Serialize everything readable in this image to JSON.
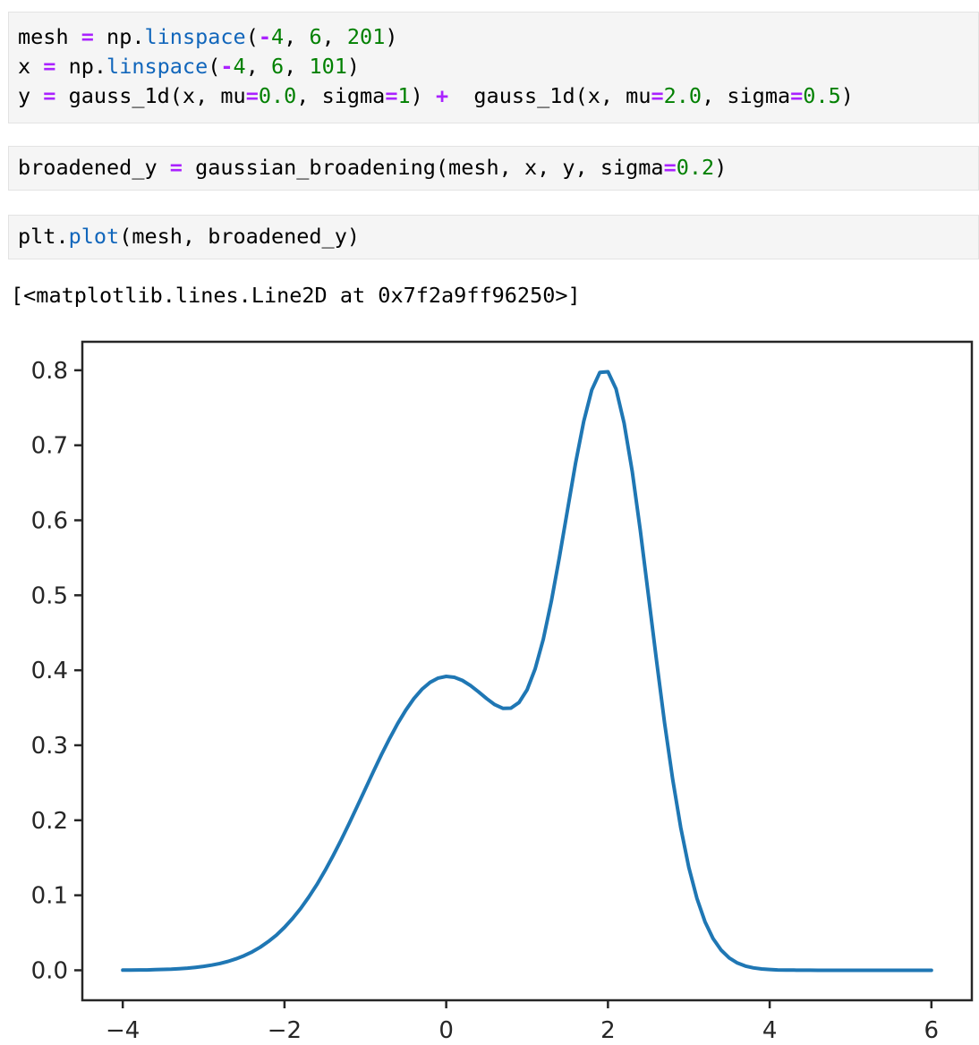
{
  "notebook": {
    "cells": [
      {
        "name": "code-cell-1",
        "lines": [
          [
            {
              "t": "mesh ",
              "c": "p"
            },
            {
              "t": "=",
              "c": "o"
            },
            {
              "t": " np.",
              "c": "p"
            },
            {
              "t": "linspace",
              "c": "f"
            },
            {
              "t": "(",
              "c": "p"
            },
            {
              "t": "-",
              "c": "o"
            },
            {
              "t": "4",
              "c": "n"
            },
            {
              "t": ", ",
              "c": "p"
            },
            {
              "t": "6",
              "c": "n"
            },
            {
              "t": ", ",
              "c": "p"
            },
            {
              "t": "201",
              "c": "n"
            },
            {
              "t": ")",
              "c": "p"
            }
          ],
          [
            {
              "t": "x ",
              "c": "p"
            },
            {
              "t": "=",
              "c": "o"
            },
            {
              "t": " np.",
              "c": "p"
            },
            {
              "t": "linspace",
              "c": "f"
            },
            {
              "t": "(",
              "c": "p"
            },
            {
              "t": "-",
              "c": "o"
            },
            {
              "t": "4",
              "c": "n"
            },
            {
              "t": ", ",
              "c": "p"
            },
            {
              "t": "6",
              "c": "n"
            },
            {
              "t": ", ",
              "c": "p"
            },
            {
              "t": "101",
              "c": "n"
            },
            {
              "t": ")",
              "c": "p"
            }
          ],
          [
            {
              "t": "y ",
              "c": "p"
            },
            {
              "t": "=",
              "c": "o"
            },
            {
              "t": " gauss_1d(x, mu",
              "c": "p"
            },
            {
              "t": "=",
              "c": "o"
            },
            {
              "t": "0.0",
              "c": "n"
            },
            {
              "t": ", sigma",
              "c": "p"
            },
            {
              "t": "=",
              "c": "o"
            },
            {
              "t": "1",
              "c": "n"
            },
            {
              "t": ") ",
              "c": "p"
            },
            {
              "t": "+",
              "c": "o"
            },
            {
              "t": "  gauss_1d(x, mu",
              "c": "p"
            },
            {
              "t": "=",
              "c": "o"
            },
            {
              "t": "2.0",
              "c": "n"
            },
            {
              "t": ", sigma",
              "c": "p"
            },
            {
              "t": "=",
              "c": "o"
            },
            {
              "t": "0.5",
              "c": "n"
            },
            {
              "t": ")",
              "c": "p"
            }
          ]
        ]
      },
      {
        "name": "code-cell-2",
        "lines": [
          [
            {
              "t": "broadened_y ",
              "c": "p"
            },
            {
              "t": "=",
              "c": "o"
            },
            {
              "t": " gaussian_broadening(mesh, x, y, sigma",
              "c": "p"
            },
            {
              "t": "=",
              "c": "o"
            },
            {
              "t": "0.2",
              "c": "n"
            },
            {
              "t": ")",
              "c": "p"
            }
          ]
        ]
      },
      {
        "name": "code-cell-3",
        "lines": [
          [
            {
              "t": "plt.",
              "c": "p"
            },
            {
              "t": "plot",
              "c": "f"
            },
            {
              "t": "(mesh, broadened_y)",
              "c": "p"
            }
          ]
        ]
      }
    ],
    "output_text": "[<matplotlib.lines.Line2D at 0x7f2a9ff96250>]"
  },
  "colors": {
    "code_plain": "#000000",
    "code_operator": "#aa22ff",
    "code_number": "#008000",
    "code_property": "#1166bb",
    "cell_background": "#f5f5f5",
    "cell_border": "#e3e3e3",
    "axis": "#262626",
    "plot_line": "#1f77b4"
  },
  "chart_data": {
    "type": "line",
    "title": "",
    "xlabel": "",
    "ylabel": "",
    "grid": false,
    "legend": null,
    "xlim": [
      -4.5,
      6.5
    ],
    "ylim": [
      -0.04,
      0.838
    ],
    "xticks": [
      -4,
      -2,
      0,
      2,
      4,
      6
    ],
    "xtick_labels": [
      "−4",
      "−2",
      "0",
      "2",
      "4",
      "6"
    ],
    "yticks": [
      0.0,
      0.1,
      0.2,
      0.3,
      0.4,
      0.5,
      0.6,
      0.7,
      0.8
    ],
    "ytick_labels": [
      "0.0",
      "0.1",
      "0.2",
      "0.3",
      "0.4",
      "0.5",
      "0.6",
      "0.7",
      "0.8"
    ],
    "line_color": "#1f77b4",
    "line_width": 4,
    "series_name": "broadened_y vs mesh",
    "x": [
      -4,
      -3.9,
      -3.8,
      -3.7,
      -3.6,
      -3.5,
      -3.4,
      -3.3,
      -3.2,
      -3.1,
      -3,
      -2.9,
      -2.8,
      -2.7,
      -2.6,
      -2.5,
      -2.4,
      -2.3,
      -2.2,
      -2.1,
      -2,
      -1.9,
      -1.8,
      -1.7,
      -1.6,
      -1.5,
      -1.4,
      -1.3,
      -1.2,
      -1.1,
      -1,
      -0.9,
      -0.8,
      -0.7,
      -0.6,
      -0.5,
      -0.4,
      -0.3,
      -0.2,
      -0.1,
      0,
      0.1,
      0.2,
      0.3,
      0.4,
      0.5,
      0.6,
      0.7,
      0.8,
      0.9,
      1,
      1.1,
      1.2,
      1.3,
      1.4,
      1.5,
      1.6,
      1.7,
      1.8,
      1.9,
      2,
      2.1,
      2.2,
      2.3,
      2.4,
      2.5,
      2.6,
      2.7,
      2.8,
      2.9,
      3,
      3.1,
      3.2,
      3.3,
      3.4,
      3.5,
      3.6,
      3.7,
      3.8,
      3.9,
      4,
      4.1,
      4.2,
      4.3,
      4.4,
      4.5,
      4.6,
      4.7,
      4.8,
      4.9,
      5,
      5.1,
      5.2,
      5.3,
      5.4,
      5.5,
      5.6,
      5.7,
      5.8,
      5.9,
      6
    ],
    "y": [
      0.0002,
      0.0003,
      0.0004,
      0.0005,
      0.0008,
      0.0011,
      0.0015,
      0.0021,
      0.0028,
      0.0039,
      0.0052,
      0.0069,
      0.009,
      0.0118,
      0.0152,
      0.0194,
      0.0245,
      0.0308,
      0.0382,
      0.0469,
      0.0572,
      0.069,
      0.0824,
      0.0975,
      0.1142,
      0.1326,
      0.1524,
      0.1736,
      0.1957,
      0.2186,
      0.2419,
      0.265,
      0.2876,
      0.3091,
      0.329,
      0.3469,
      0.3622,
      0.3747,
      0.3839,
      0.3896,
      0.3919,
      0.3907,
      0.3865,
      0.3797,
      0.3712,
      0.3622,
      0.3542,
      0.3493,
      0.3495,
      0.357,
      0.374,
      0.4019,
      0.4414,
      0.4919,
      0.5506,
      0.614,
      0.6764,
      0.7318,
      0.7738,
      0.7972,
      0.798,
      0.7751,
      0.7296,
      0.6651,
      0.5867,
      0.5008,
      0.4134,
      0.3301,
      0.2547,
      0.1902,
      0.1373,
      0.0959,
      0.0647,
      0.0423,
      0.0268,
      0.0164,
      0.0098,
      0.0056,
      0.0032,
      0.0018,
      0.001,
      0.0005,
      0.0003,
      0.0002,
      0.0001,
      0.0001,
      0,
      0,
      0,
      0,
      0,
      0,
      0,
      0,
      0,
      0,
      0,
      0,
      0,
      0,
      0
    ]
  }
}
